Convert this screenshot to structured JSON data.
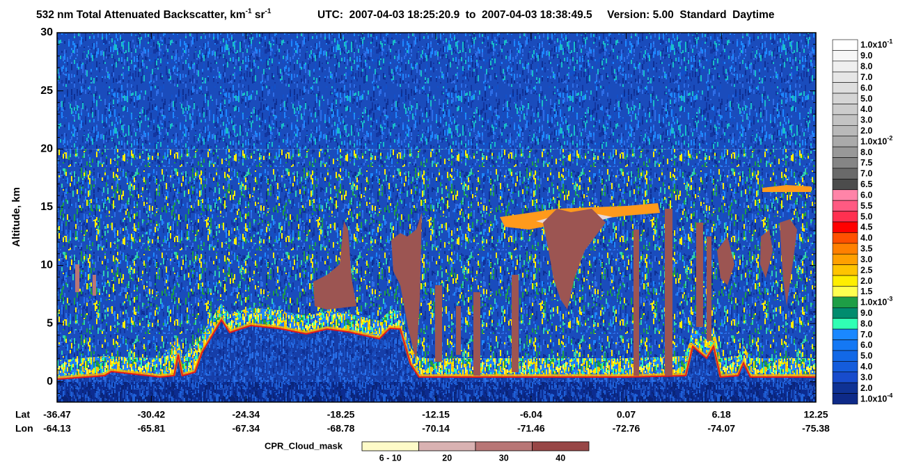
{
  "chart_data": {
    "type": "heatmap",
    "title": [
      "532 nm Total Attenuated Backscatter, km",
      "-1",
      " sr",
      "-1"
    ],
    "subtitle": "UTC:  2007-04-03 18:25:20.9  to  2007-04-03 18:38:49.5     Version: 5.00  Standard  Daytime",
    "ylabel": "Altitude, km",
    "ylim": [
      -1.75,
      30
    ],
    "yticks": [
      0,
      5,
      10,
      15,
      20,
      25,
      30
    ],
    "x_axis_labels": [
      "Lat",
      "Lon"
    ],
    "xlim": [
      -36.47,
      12.25
    ],
    "lat": [
      -36.47,
      -30.42,
      -24.34,
      -18.25,
      -12.15,
      -6.04,
      0.07,
      6.18,
      12.25
    ],
    "lon": [
      -64.13,
      -65.81,
      -67.34,
      -68.78,
      -70.14,
      -71.46,
      -72.76,
      -74.07,
      -75.38
    ],
    "colorbar": [
      {
        "label": "1.0x10",
        "exponent": "-1",
        "color": "#ffffff"
      },
      {
        "label": "9.0",
        "color": "#f7f7f7"
      },
      {
        "label": "8.0",
        "color": "#efefef"
      },
      {
        "label": "7.0",
        "color": "#e6e6e6"
      },
      {
        "label": "6.0",
        "color": "#dedede"
      },
      {
        "label": "5.0",
        "color": "#d5d5d5"
      },
      {
        "label": "4.0",
        "color": "#cccccc"
      },
      {
        "label": "3.0",
        "color": "#c3c3c3"
      },
      {
        "label": "2.0",
        "color": "#b9b9b9"
      },
      {
        "label": "1.0x10",
        "exponent": "-2",
        "color": "#aaaaaa"
      },
      {
        "label": "8.0",
        "color": "#989898"
      },
      {
        "label": "7.5",
        "color": "#858585"
      },
      {
        "label": "7.0",
        "color": "#6a6a6a"
      },
      {
        "label": "6.5",
        "color": "#4c4c4c"
      },
      {
        "label": "6.0",
        "color": "#ff84a8"
      },
      {
        "label": "5.5",
        "color": "#ff5a82"
      },
      {
        "label": "5.0",
        "color": "#ff3050"
      },
      {
        "label": "4.5",
        "color": "#ff0000"
      },
      {
        "label": "4.0",
        "color": "#ff5000"
      },
      {
        "label": "3.5",
        "color": "#ff8000"
      },
      {
        "label": "3.0",
        "color": "#ffa000"
      },
      {
        "label": "2.5",
        "color": "#ffc400"
      },
      {
        "label": "2.0",
        "color": "#ffee00"
      },
      {
        "label": "1.5",
        "color": "#ffff50"
      },
      {
        "label": "1.0x10",
        "exponent": "-3",
        "color": "#1e9e46"
      },
      {
        "label": "9.0",
        "color": "#008c6e"
      },
      {
        "label": "8.0",
        "color": "#30ffb4"
      },
      {
        "label": "7.0",
        "color": "#1a88ff"
      },
      {
        "label": "6.0",
        "color": "#1478f4"
      },
      {
        "label": "5.0",
        "color": "#1268e6"
      },
      {
        "label": "4.0",
        "color": "#145cdc"
      },
      {
        "label": "3.0",
        "color": "#184ccc"
      },
      {
        "label": "2.0",
        "color": "#0f3294"
      },
      {
        "label": "1.0x10",
        "exponent": "-4",
        "color": "#0e2a88"
      }
    ],
    "cloud_mask": {
      "title": "CPR_Cloud_mask",
      "categories": [
        "6 - 10",
        "20",
        "30",
        "40"
      ],
      "colors": [
        "#fefbc8",
        "#d9b2b2",
        "#b87676",
        "#984646"
      ]
    }
  }
}
